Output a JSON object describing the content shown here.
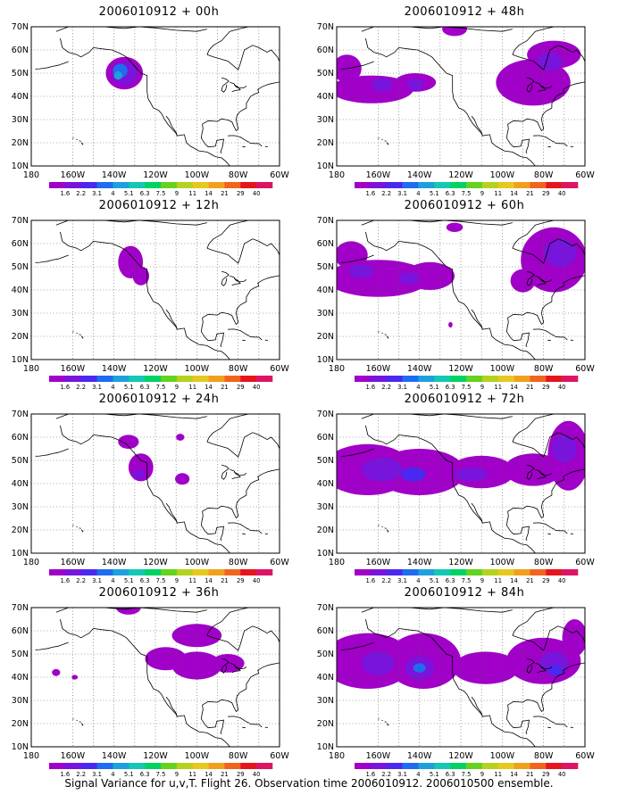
{
  "footer": "Signal Variance for u,v,T. Flight 26. Observation time 2006010912. 2006010500 ensemble.",
  "axes": {
    "lon_labels": [
      "180",
      "160W",
      "140W",
      "120W",
      "100W",
      "80W",
      "60W"
    ],
    "lat_labels": [
      "10N",
      "20N",
      "30N",
      "40N",
      "50N",
      "60N",
      "70N"
    ],
    "lon_range": [
      -180,
      -60
    ],
    "lat_range": [
      10,
      70
    ],
    "grid": "dotted"
  },
  "colorbar": {
    "labels": [
      "1.6",
      "2.2",
      "3.1",
      "4",
      "5.1",
      "6.3",
      "7.5",
      "9",
      "11",
      "14",
      "21",
      "29",
      "40"
    ],
    "colors": [
      "#a000c8",
      "#7814dc",
      "#4b28f0",
      "#1e6cf0",
      "#1ea0dc",
      "#14c8b4",
      "#00d264",
      "#64d21e",
      "#b4d21e",
      "#e6c81e",
      "#f0a01e",
      "#f0641e",
      "#e6141e",
      "#dc1464"
    ]
  },
  "panels": [
    {
      "title": "2006010912 + 00h",
      "blobs": [
        {
          "lon": -135,
          "lat": 50,
          "rx": 9,
          "ry": 7,
          "level": 0
        },
        {
          "lon": -135,
          "lat": 50,
          "rx": 6,
          "ry": 5,
          "level": 1
        },
        {
          "lon": -137,
          "lat": 51,
          "rx": 3.5,
          "ry": 3,
          "level": 3
        },
        {
          "lon": -138,
          "lat": 49,
          "rx": 2,
          "ry": 1.8,
          "level": 4
        }
      ]
    },
    {
      "title": "2006010912 + 12h",
      "blobs": [
        {
          "lon": -132,
          "lat": 52,
          "rx": 6,
          "ry": 7,
          "level": 0
        },
        {
          "lon": -127,
          "lat": 46,
          "rx": 4,
          "ry": 4,
          "level": 0
        }
      ]
    },
    {
      "title": "2006010912 + 24h",
      "blobs": [
        {
          "lon": -133,
          "lat": 58,
          "rx": 5,
          "ry": 3,
          "level": 0
        },
        {
          "lon": -127,
          "lat": 47,
          "rx": 6,
          "ry": 6,
          "level": 0
        },
        {
          "lon": -128,
          "lat": 44,
          "rx": 3,
          "ry": 2,
          "level": 1
        },
        {
          "lon": -107,
          "lat": 42,
          "rx": 3.5,
          "ry": 2.5,
          "level": 0
        },
        {
          "lon": -108,
          "lat": 60,
          "rx": 2,
          "ry": 1.5,
          "level": 0
        }
      ]
    },
    {
      "title": "2006010912 + 36h",
      "blobs": [
        {
          "lon": -133,
          "lat": 70,
          "rx": 6,
          "ry": 3,
          "level": 0
        },
        {
          "lon": -100,
          "lat": 58,
          "rx": 12,
          "ry": 5,
          "level": 0
        },
        {
          "lon": -115,
          "lat": 48,
          "rx": 10,
          "ry": 5,
          "level": 0
        },
        {
          "lon": -100,
          "lat": 45,
          "rx": 12,
          "ry": 6,
          "level": 0
        },
        {
          "lon": -85,
          "lat": 46,
          "rx": 8,
          "ry": 4,
          "level": 0
        },
        {
          "lon": -168,
          "lat": 42,
          "rx": 2,
          "ry": 1.5,
          "level": 0
        },
        {
          "lon": -159,
          "lat": 40,
          "rx": 1.5,
          "ry": 1,
          "level": 0
        }
      ]
    },
    {
      "title": "2006010912 + 48h",
      "blobs": [
        {
          "lon": -163,
          "lat": 43,
          "rx": 20,
          "ry": 6,
          "level": 0
        },
        {
          "lon": -175,
          "lat": 52,
          "rx": 7,
          "ry": 6,
          "level": 0
        },
        {
          "lon": -142,
          "lat": 46,
          "rx": 10,
          "ry": 4,
          "level": 0
        },
        {
          "lon": -158,
          "lat": 45,
          "rx": 5,
          "ry": 3,
          "level": 1
        },
        {
          "lon": -142,
          "lat": 45,
          "rx": 4,
          "ry": 2.5,
          "level": 1
        },
        {
          "lon": -85,
          "lat": 46,
          "rx": 18,
          "ry": 10,
          "level": 0
        },
        {
          "lon": -75,
          "lat": 58,
          "rx": 13,
          "ry": 6,
          "level": 0
        },
        {
          "lon": -77,
          "lat": 55,
          "rx": 6,
          "ry": 4,
          "level": 1
        },
        {
          "lon": -123,
          "lat": 69,
          "rx": 6,
          "ry": 3,
          "level": 0
        }
      ]
    },
    {
      "title": "2006010912 + 60h",
      "blobs": [
        {
          "lon": -160,
          "lat": 45,
          "rx": 25,
          "ry": 8,
          "level": 0
        },
        {
          "lon": -135,
          "lat": 46,
          "rx": 12,
          "ry": 6,
          "level": 0
        },
        {
          "lon": -173,
          "lat": 55,
          "rx": 8,
          "ry": 6,
          "level": 0
        },
        {
          "lon": -145,
          "lat": 45,
          "rx": 5,
          "ry": 2.5,
          "level": 1
        },
        {
          "lon": -168,
          "lat": 48,
          "rx": 6,
          "ry": 3,
          "level": 1
        },
        {
          "lon": -75,
          "lat": 53,
          "rx": 16,
          "ry": 14,
          "level": 0
        },
        {
          "lon": -72,
          "lat": 56,
          "rx": 8,
          "ry": 6,
          "level": 1
        },
        {
          "lon": -90,
          "lat": 44,
          "rx": 6,
          "ry": 5,
          "level": 0
        },
        {
          "lon": -123,
          "lat": 67,
          "rx": 4,
          "ry": 2,
          "level": 0
        },
        {
          "lon": -125,
          "lat": 25,
          "rx": 1,
          "ry": 1.2,
          "level": 0
        }
      ]
    },
    {
      "title": "2006010912 + 72h",
      "blobs": [
        {
          "lon": -165,
          "lat": 46,
          "rx": 22,
          "ry": 11,
          "level": 0
        },
        {
          "lon": -140,
          "lat": 45,
          "rx": 22,
          "ry": 10,
          "level": 0
        },
        {
          "lon": -110,
          "lat": 45,
          "rx": 16,
          "ry": 7,
          "level": 0
        },
        {
          "lon": -85,
          "lat": 46,
          "rx": 14,
          "ry": 7,
          "level": 0
        },
        {
          "lon": -68,
          "lat": 52,
          "rx": 10,
          "ry": 15,
          "level": 0
        },
        {
          "lon": -158,
          "lat": 46,
          "rx": 10,
          "ry": 5,
          "level": 1
        },
        {
          "lon": -143,
          "lat": 44,
          "rx": 6,
          "ry": 3,
          "level": 2
        },
        {
          "lon": -115,
          "lat": 44,
          "rx": 8,
          "ry": 3,
          "level": 1
        },
        {
          "lon": -70,
          "lat": 55,
          "rx": 6,
          "ry": 6,
          "level": 1
        }
      ]
    },
    {
      "title": "2006010912 + 84h",
      "blobs": [
        {
          "lon": -165,
          "lat": 47,
          "rx": 22,
          "ry": 12,
          "level": 0
        },
        {
          "lon": -138,
          "lat": 47,
          "rx": 18,
          "ry": 12,
          "level": 0
        },
        {
          "lon": -108,
          "lat": 44,
          "rx": 16,
          "ry": 7,
          "level": 0
        },
        {
          "lon": -80,
          "lat": 47,
          "rx": 18,
          "ry": 10,
          "level": 0
        },
        {
          "lon": -65,
          "lat": 57,
          "rx": 6,
          "ry": 8,
          "level": 0
        },
        {
          "lon": -160,
          "lat": 46,
          "rx": 8,
          "ry": 5,
          "level": 1
        },
        {
          "lon": -140,
          "lat": 44,
          "rx": 7,
          "ry": 5,
          "level": 1
        },
        {
          "lon": -140,
          "lat": 44,
          "rx": 3,
          "ry": 2,
          "level": 3
        },
        {
          "lon": -75,
          "lat": 46,
          "rx": 7,
          "ry": 5,
          "level": 1
        },
        {
          "lon": -74,
          "lat": 43,
          "rx": 3.5,
          "ry": 2.5,
          "level": 2
        }
      ]
    }
  ]
}
